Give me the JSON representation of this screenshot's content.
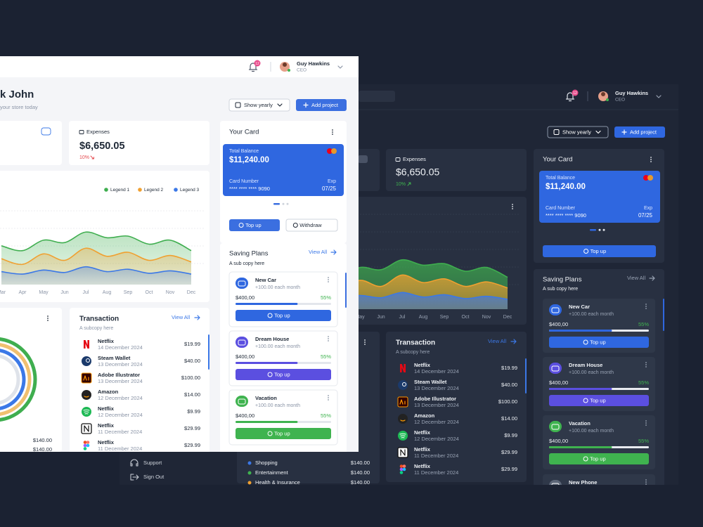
{
  "user": {
    "name": "Guy Hawkins",
    "role": "CEO",
    "notifications": "12"
  },
  "greeting": {
    "title": "k John",
    "subtitle": "your store today"
  },
  "buttons": {
    "show_yearly": "Show yearly",
    "add_project": "Add project",
    "top_up": "Top up",
    "withdraw": "Withdraw",
    "view_all": "View All"
  },
  "expenses": {
    "label": "Expenses",
    "value": "$6,650.05",
    "change": "10%"
  },
  "chart_data": {
    "type": "area",
    "categories": [
      "Mar",
      "Apr",
      "May",
      "Jun",
      "Jul",
      "Aug",
      "Sep",
      "Oct",
      "Nov",
      "Dec"
    ],
    "series": [
      {
        "name": "Legend 1",
        "color": "#3fae4f",
        "values": [
          48,
          42,
          55,
          52,
          65,
          58,
          60,
          50,
          55,
          42
        ]
      },
      {
        "name": "Legend 2",
        "color": "#f0a030",
        "values": [
          32,
          25,
          38,
          30,
          45,
          35,
          40,
          30,
          36,
          28
        ]
      },
      {
        "name": "Legend 3",
        "color": "#3b78e7",
        "values": [
          16,
          13,
          18,
          15,
          22,
          16,
          19,
          14,
          17,
          13
        ]
      }
    ],
    "ylim": [
      0,
      100
    ]
  },
  "your_card": {
    "title": "Your Card",
    "balance_label": "Total Balance",
    "balance": "$11,240.00",
    "number_label": "Card Number",
    "number": "**** **** **** 9090",
    "exp_label": "Exp",
    "exp": "07/25"
  },
  "saving_plans": {
    "title": "Saving Plans",
    "subtitle": "A sub copy here",
    "plans": [
      {
        "name": "New Car",
        "rate": "+100.00 each month",
        "amount": "$400,00",
        "percent": "55%"
      },
      {
        "name": "Dream House",
        "rate": "+100.00 each month",
        "amount": "$400,00",
        "percent": "55%"
      },
      {
        "name": "Vacation",
        "rate": "+100.00 each month",
        "amount": "$400,00",
        "percent": "55%"
      },
      {
        "name": "New Phone"
      }
    ]
  },
  "transactions": {
    "title": "Transaction",
    "subtitle": "A subcopy here",
    "items": [
      {
        "name": "Netflix",
        "date": "14 December 2024",
        "amount": "$19.99"
      },
      {
        "name": "Steam Wallet",
        "date": "13 December 2024",
        "amount": "$40.00"
      },
      {
        "name": "Adobe Illustrator",
        "date": "13 December 2024",
        "amount": "$100.00"
      },
      {
        "name": "Amazon",
        "date": "12 December 2024",
        "amount": "$14.00"
      },
      {
        "name": "Netflix",
        "date": "12 December 2024",
        "amount": "$9.99"
      },
      {
        "name": "Netflix",
        "date": "11 December 2024",
        "amount": "$29.99"
      },
      {
        "name": "Netflix",
        "date": "11 December 2024",
        "amount": "$29.99"
      }
    ]
  },
  "spending": {
    "items": [
      {
        "name": "Shopping",
        "amount": "$140.00"
      },
      {
        "name": "Entertainment",
        "amount": "$140.00"
      },
      {
        "name": "Health & Insurance",
        "amount": "$140.00"
      }
    ]
  },
  "sidebar": {
    "items": [
      "Support",
      "Sign Out"
    ]
  }
}
